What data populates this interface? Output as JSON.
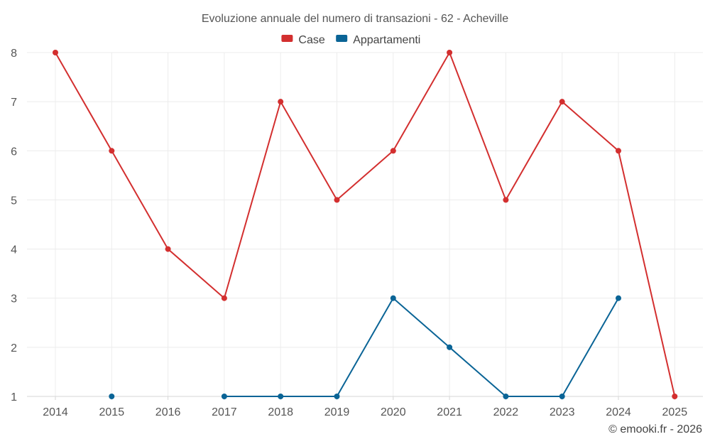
{
  "chart_data": {
    "type": "line",
    "title": "Evoluzione annuale del numero di transazioni - 62 - Acheville",
    "categories": [
      "2014",
      "2015",
      "2016",
      "2017",
      "2018",
      "2019",
      "2020",
      "2021",
      "2022",
      "2023",
      "2024",
      "2025"
    ],
    "series": [
      {
        "name": "Case",
        "color": "#d32f2f",
        "values": [
          8,
          6,
          4,
          3,
          7,
          5,
          6,
          8,
          5,
          7,
          6,
          1
        ]
      },
      {
        "name": "Appartamenti",
        "color": "#0a6496",
        "values": [
          null,
          1,
          null,
          1,
          1,
          1,
          3,
          2,
          1,
          1,
          3,
          null
        ]
      }
    ],
    "ylim": [
      1,
      8
    ],
    "yticks": [
      1,
      2,
      3,
      4,
      5,
      6,
      7,
      8
    ],
    "grid": true,
    "legend": "top-center",
    "xlabel": "",
    "ylabel": ""
  },
  "credit": "© emooki.fr - 2026"
}
